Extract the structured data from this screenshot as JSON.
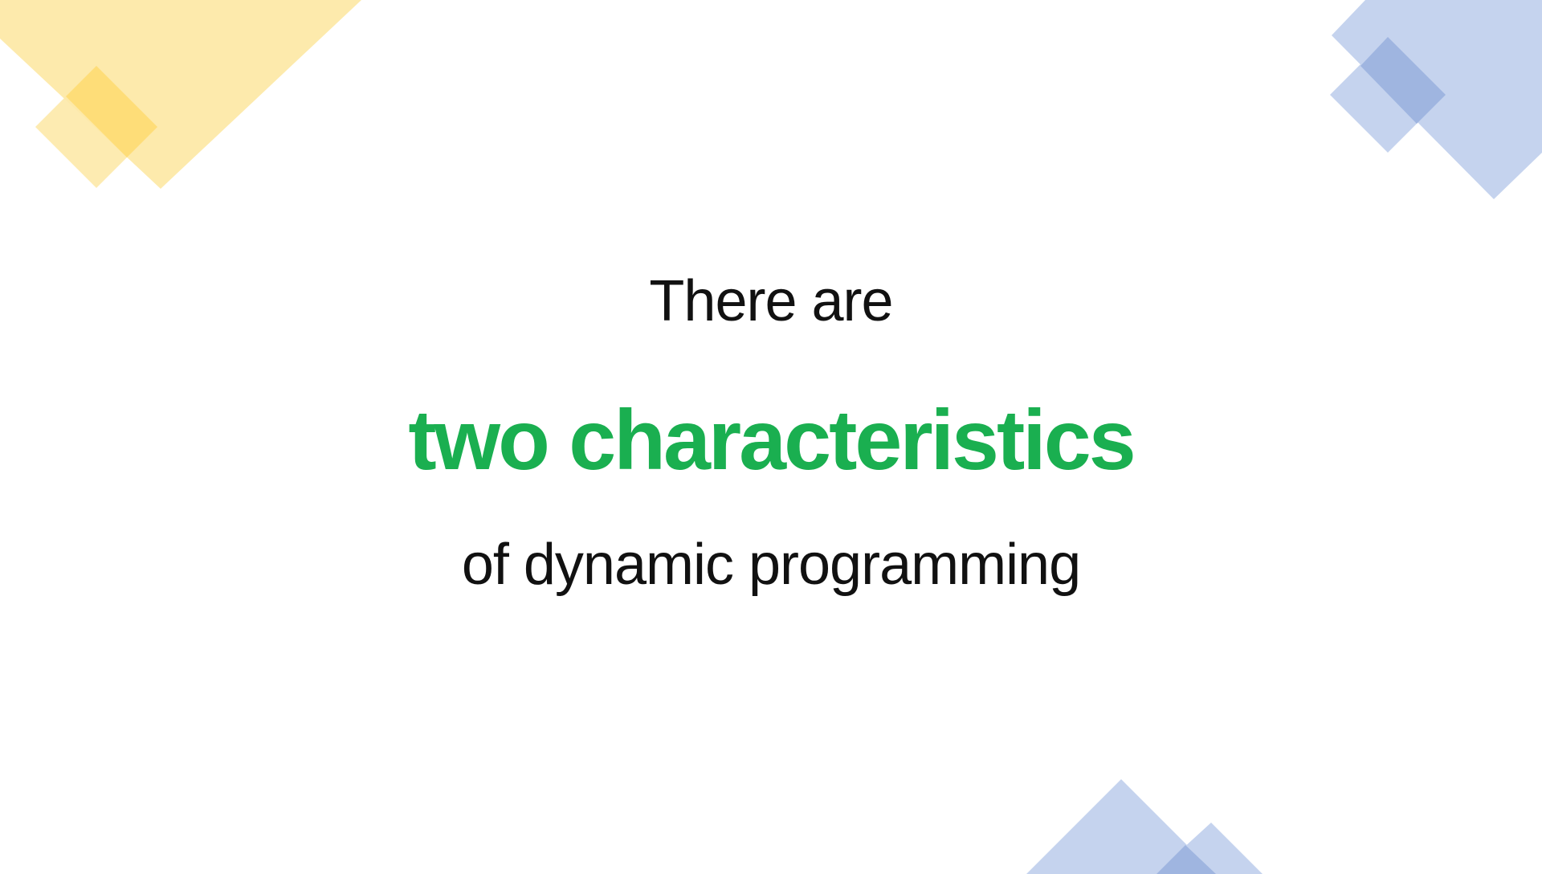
{
  "slide": {
    "line_1": "There are",
    "line_2": "two characteristics",
    "line_3": "of dynamic programming"
  },
  "colors": {
    "text": "#111111",
    "accent_green": "#1aaf50",
    "yellow_shape": "#fde9a8",
    "yellow_shape_dark": "#fedb72",
    "blue_shape": "#c5d3ee",
    "blue_shape_dark": "#9fb5e0"
  }
}
